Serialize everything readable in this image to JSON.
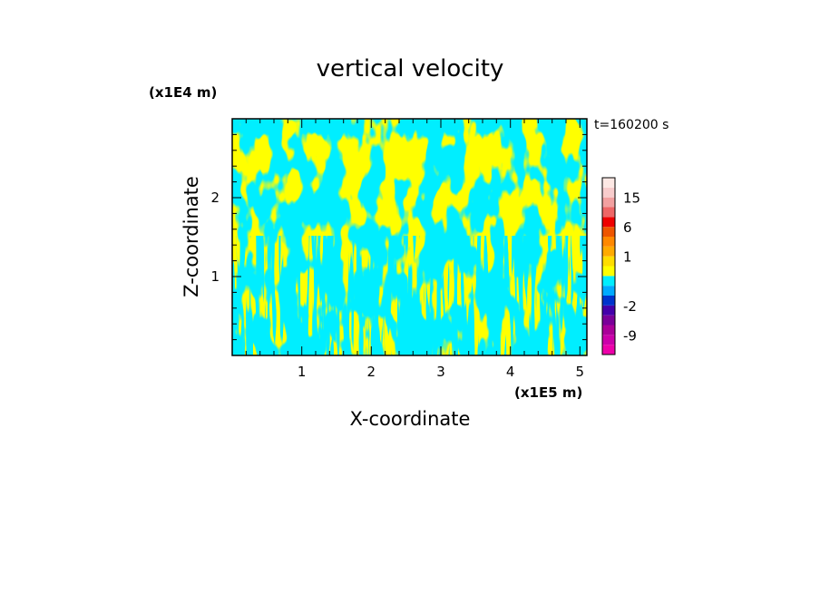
{
  "chart_data": {
    "type": "heatmap",
    "title": "vertical velocity",
    "time_label": "t=160200 s",
    "xlabel": "X-coordinate",
    "ylabel": "Z-coordinate",
    "x_scale_label": "(x1E5 m)",
    "y_scale_label": "(x1E4 m)",
    "xlim": [
      0,
      5.1
    ],
    "ylim": [
      0,
      3.0
    ],
    "x_ticks": [
      1,
      2,
      3,
      4,
      5
    ],
    "y_ticks": [
      1,
      2
    ],
    "x_tick_labels": [
      "1",
      "2",
      "3",
      "4",
      "5"
    ],
    "y_tick_labels": [
      "1",
      "2"
    ],
    "field_categories": [
      {
        "name": "negative",
        "color": "#00eeff",
        "approx_value": -0.5
      },
      {
        "name": "positive",
        "color": "#ffff00",
        "approx_value": 0.5
      }
    ],
    "colorbar": {
      "levels": [
        {
          "upper": -12,
          "color": "#ee00aa"
        },
        {
          "upper": -9,
          "color": "#cc00aa"
        },
        {
          "upper": -6,
          "color": "#aa0099"
        },
        {
          "upper": -4,
          "color": "#7a0099"
        },
        {
          "upper": -2,
          "color": "#4400aa"
        },
        {
          "upper": -1,
          "color": "#0033cc"
        },
        {
          "upper": -0.5,
          "color": "#00aaff"
        },
        {
          "upper": 0,
          "color": "#00eeff"
        },
        {
          "upper": 0.5,
          "color": "#ffff00"
        },
        {
          "upper": 1,
          "color": "#ffdd00"
        },
        {
          "upper": 2,
          "color": "#ffaa00"
        },
        {
          "upper": 4,
          "color": "#ff8800"
        },
        {
          "upper": 6,
          "color": "#ee5500"
        },
        {
          "upper": 9,
          "color": "#ee0000"
        },
        {
          "upper": 12,
          "color": "#ee6666"
        },
        {
          "upper": 15,
          "color": "#f2a0a0"
        },
        {
          "upper": 18,
          "color": "#f8cccc"
        },
        {
          "upper": 24,
          "color": "#fde8e4"
        }
      ],
      "tick_labels": [
        "15",
        "6",
        "1",
        "-2",
        "-9"
      ]
    }
  }
}
